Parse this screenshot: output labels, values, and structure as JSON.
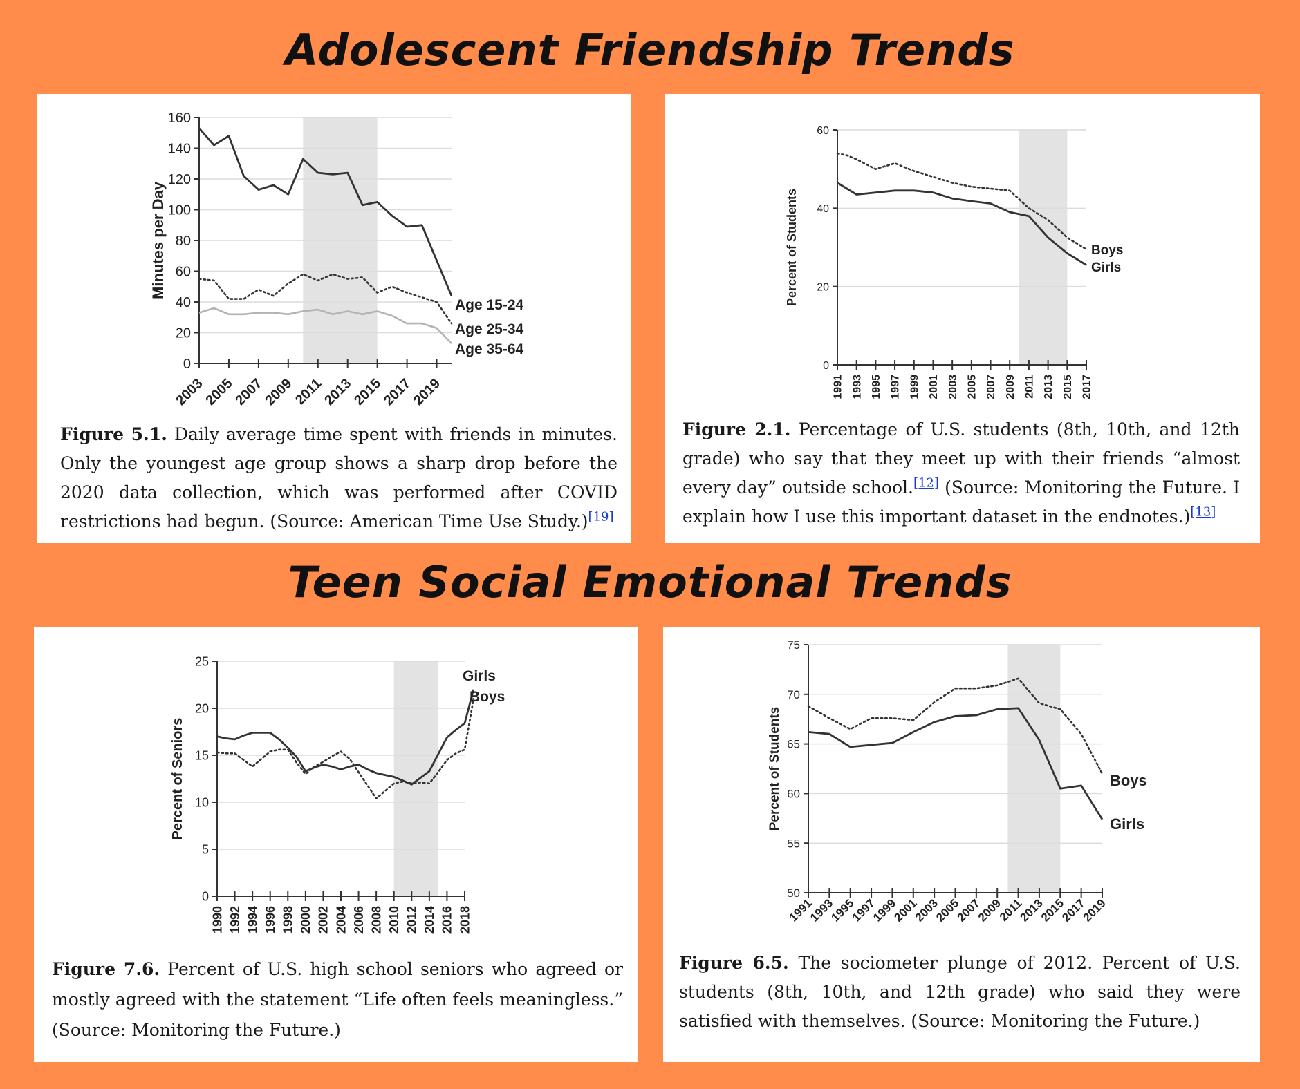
{
  "headings": {
    "top": "Adolescent Friendship Trends",
    "bottom": "Teen Social Emotional Trends"
  },
  "colors": {
    "background": "#FF8C4A",
    "panel": "#FFFFFF",
    "shade": "#E3E3E3",
    "line_dark": "#333333",
    "line_light": "#B3B3B3"
  },
  "captions": {
    "fig51": {
      "label": "Figure 5.1.",
      "text": " Daily average time spent with friends in minutes. Only the youngest age group shows a sharp drop before the 2020 data collection, which was performed after COVID restrictions had begun. (Source: American Time Use Study.)",
      "ref": "[19]"
    },
    "fig21": {
      "label": "Figure 2.1.",
      "text": " Percentage of U.S. students (8th, 10th, and 12th grade) who say that they meet up with their friends “almost every day” outside school.",
      "ref1": "[12]",
      "text2": " (Source: Monitoring the Future. I explain how I use this important dataset in the endnotes.)",
      "ref2": "[13]"
    },
    "fig76": {
      "label": "Figure 7.6.",
      "text": " Percent of U.S. high school seniors who agreed or mostly agreed with the statement “Life often feels meaningless.” (Source: Monitoring the Future.)"
    },
    "fig65": {
      "label": "Figure 6.5.",
      "text": " The sociometer plunge of 2012. Percent of U.S. students (8th, 10th, and 12th grade) who said they were satisfied with themselves. (Source: Monitoring the Future.)"
    }
  },
  "chart_data": [
    {
      "id": "fig51",
      "type": "line",
      "ylabel": "Minutes per Day",
      "xlabel": "",
      "xlim": [
        2003,
        2020
      ],
      "ylim": [
        0,
        160
      ],
      "yticks": [
        0,
        20,
        40,
        60,
        80,
        100,
        120,
        140,
        160
      ],
      "xticks": [
        "2003",
        "2005",
        "2007",
        "2009",
        "2011",
        "2013",
        "2015",
        "2017",
        "2019"
      ],
      "shade": [
        2010,
        2015
      ],
      "grid": true,
      "x": [
        2003,
        2004,
        2005,
        2006,
        2007,
        2008,
        2009,
        2010,
        2011,
        2012,
        2013,
        2014,
        2015,
        2016,
        2017,
        2018,
        2019,
        2020
      ],
      "series": [
        {
          "name": "Age 15-24",
          "style": "solid-dark",
          "values": [
            153,
            142,
            148,
            122,
            113,
            116,
            110,
            133,
            124,
            123,
            124,
            103,
            105,
            96,
            89,
            90,
            67,
            44
          ]
        },
        {
          "name": "Age 25-34",
          "style": "dotted",
          "values": [
            55,
            54,
            42,
            42,
            48,
            44,
            52,
            58,
            54,
            58,
            55,
            56,
            46,
            50,
            46,
            43,
            40,
            26
          ]
        },
        {
          "name": "Age 35-64",
          "style": "solid-light",
          "values": [
            33,
            36,
            32,
            32,
            33,
            33,
            32,
            34,
            35,
            32,
            34,
            32,
            34,
            31,
            26,
            26,
            23,
            13
          ]
        }
      ]
    },
    {
      "id": "fig21",
      "type": "line",
      "ylabel": "Percent of Students",
      "xlabel": "",
      "xlim": [
        1991,
        2017
      ],
      "ylim": [
        0,
        60
      ],
      "yticks": [
        0,
        20,
        40,
        60
      ],
      "xticks": [
        "1991",
        "1993",
        "1995",
        "1997",
        "1999",
        "2001",
        "2003",
        "2005",
        "2007",
        "2009",
        "2011",
        "2013",
        "2015",
        "2017"
      ],
      "shade": [
        2010,
        2015
      ],
      "grid": true,
      "x": [
        1991,
        1992,
        1993,
        1995,
        1997,
        1999,
        2001,
        2003,
        2005,
        2007,
        2009,
        2011,
        2013,
        2015,
        2017
      ],
      "series": [
        {
          "name": "Boys",
          "style": "dotted",
          "values": [
            54,
            53.5,
            52.5,
            50,
            51.5,
            49.5,
            48,
            46.5,
            45.5,
            45,
            44.5,
            40,
            37,
            32.5,
            29.5
          ]
        },
        {
          "name": "Girls",
          "style": "solid-dark",
          "values": [
            46.5,
            45,
            43.5,
            44,
            44.5,
            44.5,
            44,
            42.5,
            41.8,
            41.2,
            39,
            38,
            32.5,
            28.5,
            25.5
          ]
        }
      ]
    },
    {
      "id": "fig76",
      "type": "line",
      "ylabel": "Percent of Seniors",
      "xlabel": "",
      "xlim": [
        1990,
        2018
      ],
      "ylim": [
        0,
        25
      ],
      "yticks": [
        0,
        5,
        10,
        15,
        20,
        25
      ],
      "xticks": [
        "1990",
        "1992",
        "1994",
        "1996",
        "1998",
        "2000",
        "2002",
        "2004",
        "2006",
        "2008",
        "2010",
        "2012",
        "2014",
        "2016",
        "2018"
      ],
      "shade": [
        2010,
        2015
      ],
      "grid": true,
      "x": [
        1990,
        1991,
        1992,
        1993,
        1994,
        1995,
        1996,
        1997,
        1998,
        1999,
        2000,
        2001,
        2002,
        2003,
        2004,
        2005,
        2006,
        2007,
        2008,
        2009,
        2010,
        2011,
        2012,
        2013,
        2014,
        2015,
        2016,
        2017,
        2018,
        2019
      ],
      "series": [
        {
          "name": "Girls",
          "style": "solid-dark",
          "values": [
            17,
            16.8,
            16.7,
            17.1,
            17.4,
            17.4,
            17.4,
            16.7,
            15.8,
            14.8,
            13.3,
            13.7,
            14.0,
            13.8,
            13.5,
            13.8,
            14.0,
            13.5,
            13.1,
            12.9,
            12.7,
            12.3,
            11.9,
            12.6,
            13.3,
            15.1,
            16.9,
            17.7,
            18.4,
            22.0
          ]
        },
        {
          "name": "Boys",
          "style": "dotted",
          "values": [
            15.3,
            15.2,
            15.2,
            14.5,
            13.8,
            14.6,
            15.4,
            15.6,
            15.6,
            14.2,
            13.0,
            13.8,
            14.3,
            14.9,
            15.4,
            14.6,
            13.2,
            11.8,
            10.4,
            11.2,
            12.0,
            12.2,
            12.0,
            12.1,
            12.0,
            13.2,
            14.5,
            15.2,
            15.6,
            21.0
          ]
        }
      ]
    },
    {
      "id": "fig65",
      "type": "line",
      "ylabel": "Percent of Students",
      "xlabel": "",
      "xlim": [
        1991,
        2019
      ],
      "ylim": [
        50,
        75
      ],
      "yticks": [
        50,
        55,
        60,
        65,
        70,
        75
      ],
      "xticks": [
        "1991",
        "1993",
        "1995",
        "1997",
        "1999",
        "2001",
        "2003",
        "2005",
        "2007",
        "2009",
        "2011",
        "2013",
        "2015",
        "2017",
        "2019"
      ],
      "shade": [
        2010,
        2015
      ],
      "grid": true,
      "x": [
        1991,
        1993,
        1995,
        1997,
        1999,
        2001,
        2003,
        2005,
        2007,
        2009,
        2011,
        2013,
        2015,
        2017,
        2019
      ],
      "series": [
        {
          "name": "Boys",
          "style": "dotted",
          "values": [
            68.8,
            67.6,
            66.5,
            67.6,
            67.6,
            67.4,
            69.2,
            70.6,
            70.6,
            70.9,
            71.6,
            69.1,
            68.5,
            66.0,
            62.0
          ]
        },
        {
          "name": "Girls",
          "style": "solid-dark",
          "values": [
            66.2,
            66.0,
            64.7,
            64.9,
            65.1,
            66.2,
            67.2,
            67.8,
            67.9,
            68.5,
            68.6,
            65.4,
            60.5,
            60.8,
            57.4
          ]
        }
      ]
    }
  ]
}
